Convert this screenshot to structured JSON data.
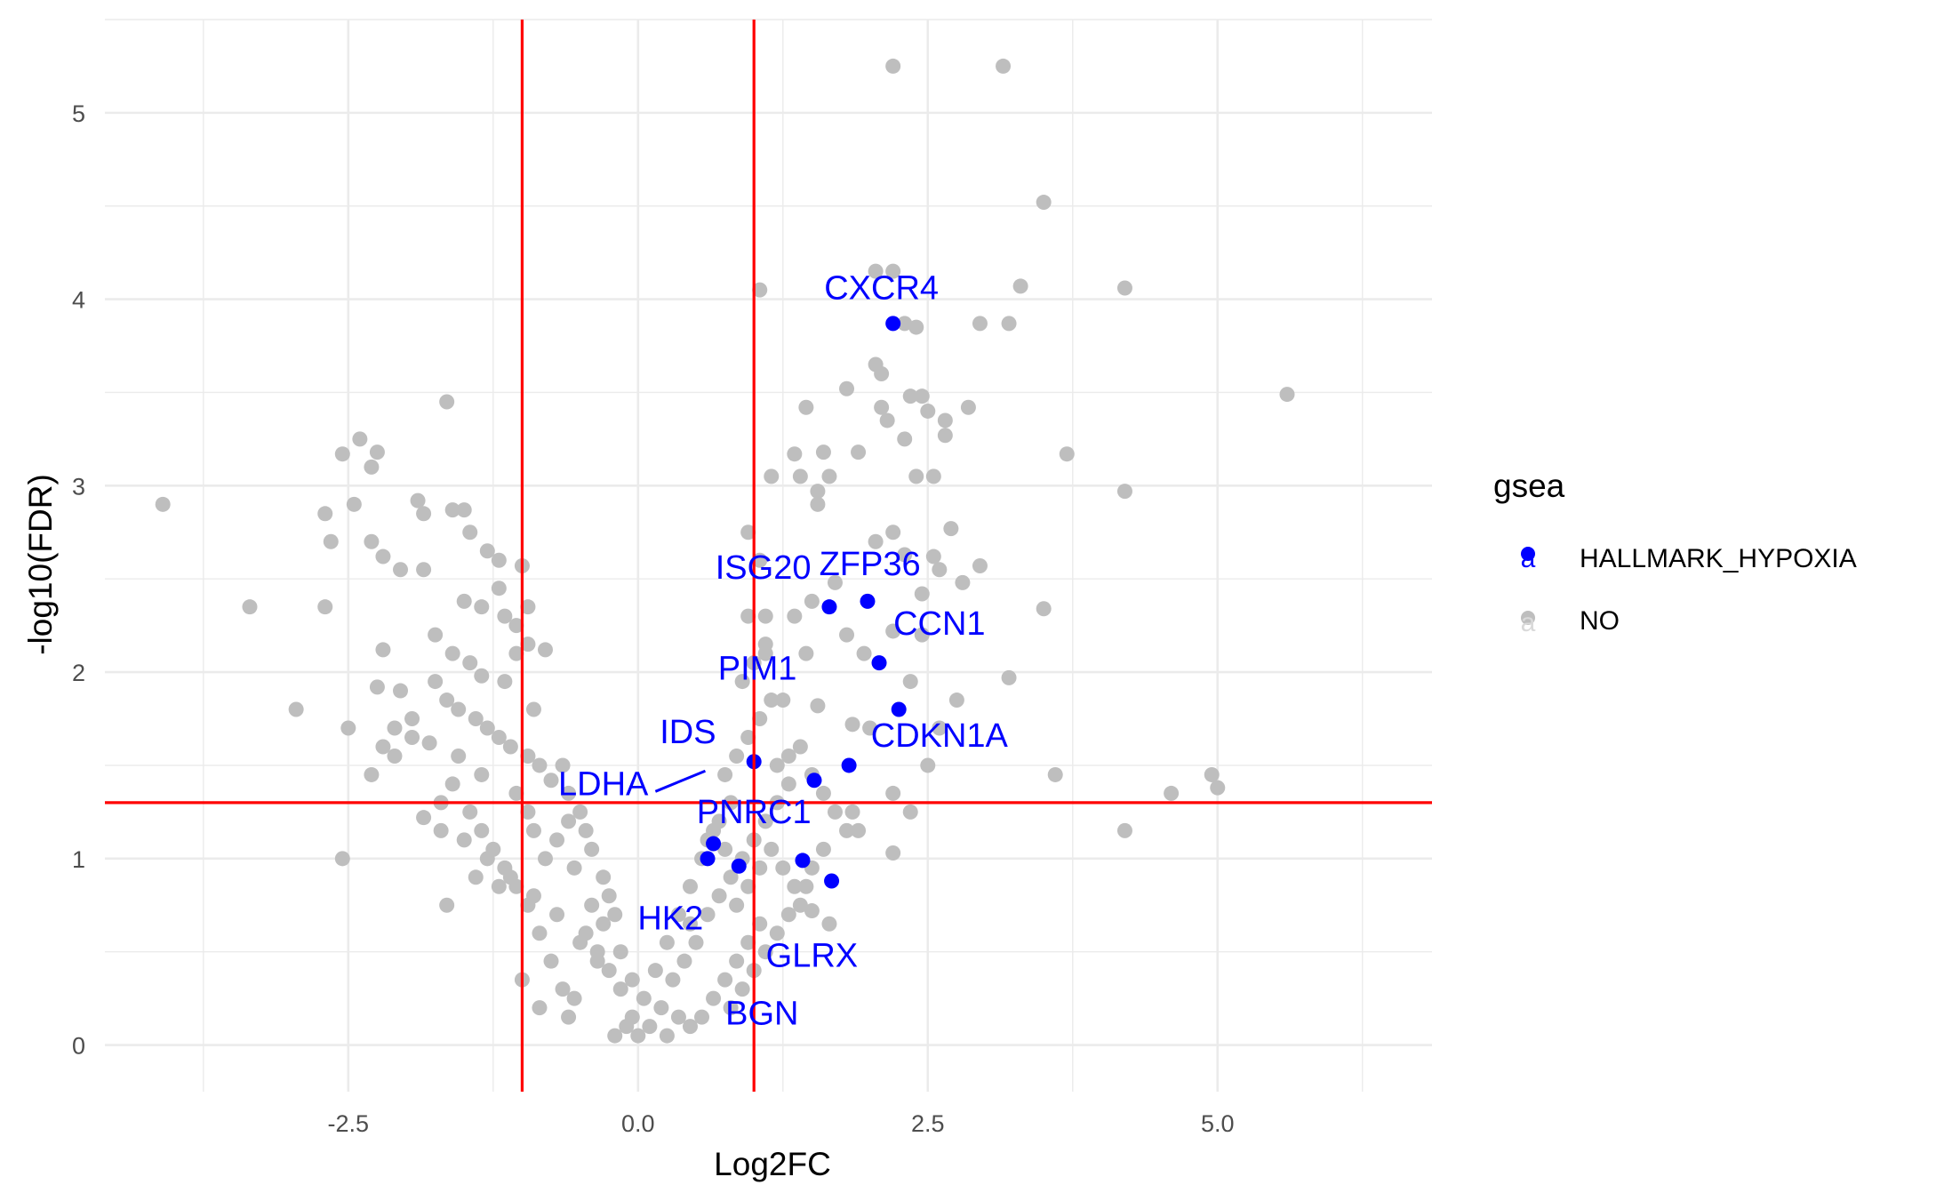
{
  "chart_data": {
    "type": "scatter",
    "title": "",
    "xlabel": "Log2FC",
    "ylabel": "-log10(FDR)",
    "xlim": [
      -4.6,
      6.85
    ],
    "ylim": [
      -0.25,
      5.5
    ],
    "xticks": [
      -2.5,
      0.0,
      2.5,
      5.0
    ],
    "xtick_labels": [
      "-2.5",
      "0.0",
      "2.5",
      "5.0"
    ],
    "yticks": [
      0,
      1,
      2,
      3,
      4,
      5
    ],
    "ytick_labels": [
      "0",
      "1",
      "2",
      "3",
      "4",
      "5"
    ],
    "grid": true,
    "thresholds": {
      "vertical_lines": [
        -1,
        1
      ],
      "horizontal_line": 1.3,
      "color": "#ff0000"
    },
    "legend": {
      "title": "gsea",
      "placement": "right",
      "entries": [
        {
          "label": "HALLMARK_HYPOXIA",
          "color": "#0000ff"
        },
        {
          "label": "NO",
          "color": "#bebebe"
        }
      ]
    },
    "series": [
      {
        "name": "NO",
        "color": "#bebebe",
        "points": [
          [
            2.2,
            5.25
          ],
          [
            3.15,
            5.25
          ],
          [
            3.5,
            4.52
          ],
          [
            2.05,
            4.15
          ],
          [
            2.2,
            4.15
          ],
          [
            3.3,
            4.07
          ],
          [
            4.2,
            4.06
          ],
          [
            1.05,
            4.05
          ],
          [
            2.3,
            3.87
          ],
          [
            2.4,
            3.85
          ],
          [
            2.95,
            3.87
          ],
          [
            3.2,
            3.87
          ],
          [
            2.05,
            3.65
          ],
          [
            2.1,
            3.6
          ],
          [
            1.8,
            3.52
          ],
          [
            2.35,
            3.48
          ],
          [
            2.45,
            3.48
          ],
          [
            5.6,
            3.49
          ],
          [
            1.45,
            3.42
          ],
          [
            2.1,
            3.42
          ],
          [
            2.5,
            3.4
          ],
          [
            2.85,
            3.42
          ],
          [
            2.15,
            3.35
          ],
          [
            2.65,
            3.35
          ],
          [
            2.65,
            3.27
          ],
          [
            2.3,
            3.25
          ],
          [
            1.35,
            3.17
          ],
          [
            1.6,
            3.18
          ],
          [
            1.9,
            3.18
          ],
          [
            3.7,
            3.17
          ],
          [
            1.65,
            3.05
          ],
          [
            1.15,
            3.05
          ],
          [
            1.4,
            3.05
          ],
          [
            2.4,
            3.05
          ],
          [
            2.55,
            3.05
          ],
          [
            1.55,
            2.97
          ],
          [
            1.55,
            2.9
          ],
          [
            4.2,
            2.97
          ],
          [
            0.95,
            2.75
          ],
          [
            2.2,
            2.75
          ],
          [
            2.7,
            2.77
          ],
          [
            2.05,
            2.7
          ],
          [
            1.05,
            2.6
          ],
          [
            2.3,
            2.63
          ],
          [
            2.55,
            2.62
          ],
          [
            2.6,
            2.55
          ],
          [
            2.95,
            2.57
          ],
          [
            1.7,
            2.48
          ],
          [
            2.8,
            2.48
          ],
          [
            2.45,
            2.42
          ],
          [
            1.5,
            2.38
          ],
          [
            1.1,
            2.3
          ],
          [
            1.35,
            2.3
          ],
          [
            3.5,
            2.34
          ],
          [
            0.95,
            2.3
          ],
          [
            1.8,
            2.2
          ],
          [
            2.2,
            2.22
          ],
          [
            2.45,
            2.2
          ],
          [
            1.1,
            2.1
          ],
          [
            1.45,
            2.1
          ],
          [
            1.95,
            2.1
          ],
          [
            3.2,
            1.97
          ],
          [
            2.35,
            1.95
          ],
          [
            2.75,
            1.85
          ],
          [
            1.25,
            1.85
          ],
          [
            1.55,
            1.82
          ],
          [
            2.6,
            1.7
          ],
          [
            2.0,
            1.7
          ],
          [
            1.85,
            1.72
          ],
          [
            2.5,
            1.5
          ],
          [
            3.6,
            1.45
          ],
          [
            4.95,
            1.45
          ],
          [
            5.0,
            1.38
          ],
          [
            4.6,
            1.35
          ],
          [
            2.2,
            1.35
          ],
          [
            2.35,
            1.25
          ],
          [
            1.85,
            1.25
          ],
          [
            1.9,
            1.15
          ],
          [
            4.2,
            1.15
          ],
          [
            2.2,
            1.03
          ],
          [
            1.5,
            0.72
          ],
          [
            1.65,
            0.65
          ],
          [
            -4.1,
            2.9
          ],
          [
            -3.35,
            2.35
          ],
          [
            -2.95,
            1.8
          ],
          [
            -2.7,
            2.85
          ],
          [
            -2.7,
            2.35
          ],
          [
            -2.65,
            2.7
          ],
          [
            -2.55,
            3.17
          ],
          [
            -2.4,
            3.25
          ],
          [
            -2.3,
            3.1
          ],
          [
            -2.25,
            3.18
          ],
          [
            -2.45,
            2.9
          ],
          [
            -2.3,
            2.7
          ],
          [
            -2.2,
            2.62
          ],
          [
            -2.05,
            2.55
          ],
          [
            -2.2,
            2.12
          ],
          [
            -2.25,
            1.92
          ],
          [
            -2.2,
            1.6
          ],
          [
            -2.1,
            1.55
          ],
          [
            -2.05,
            1.9
          ],
          [
            -1.95,
            1.75
          ],
          [
            -2.3,
            1.45
          ],
          [
            -2.5,
            1.7
          ],
          [
            -1.65,
            3.45
          ],
          [
            -1.9,
            2.92
          ],
          [
            -1.85,
            2.85
          ],
          [
            -1.6,
            2.87
          ],
          [
            -1.5,
            2.87
          ],
          [
            -1.45,
            2.75
          ],
          [
            -1.3,
            2.65
          ],
          [
            -1.2,
            2.6
          ],
          [
            -1.2,
            2.45
          ],
          [
            -1.0,
            2.57
          ],
          [
            -1.85,
            2.55
          ],
          [
            -1.5,
            2.38
          ],
          [
            -1.35,
            2.35
          ],
          [
            -1.15,
            2.3
          ],
          [
            -1.05,
            2.25
          ],
          [
            -0.95,
            2.35
          ],
          [
            -1.75,
            2.2
          ],
          [
            -1.6,
            2.1
          ],
          [
            -1.45,
            2.05
          ],
          [
            -1.35,
            1.98
          ],
          [
            -1.15,
            1.95
          ],
          [
            -1.05,
            2.1
          ],
          [
            -0.9,
            1.8
          ],
          [
            -0.95,
            2.15
          ],
          [
            -0.8,
            2.12
          ],
          [
            -1.75,
            1.95
          ],
          [
            -1.65,
            1.85
          ],
          [
            -1.55,
            1.8
          ],
          [
            -1.4,
            1.75
          ],
          [
            -1.3,
            1.7
          ],
          [
            -1.2,
            1.65
          ],
          [
            -1.1,
            1.6
          ],
          [
            -0.95,
            1.55
          ],
          [
            -0.85,
            1.5
          ],
          [
            -0.75,
            1.42
          ],
          [
            -0.65,
            1.5
          ],
          [
            -0.6,
            1.35
          ],
          [
            -0.5,
            1.25
          ],
          [
            -0.45,
            1.15
          ],
          [
            -0.4,
            1.05
          ],
          [
            -0.3,
            0.9
          ],
          [
            -0.25,
            0.8
          ],
          [
            -0.2,
            0.7
          ],
          [
            -2.55,
            1.0
          ],
          [
            -1.65,
            0.75
          ],
          [
            -1.4,
            0.9
          ],
          [
            -1.2,
            0.85
          ],
          [
            -1.7,
            1.15
          ],
          [
            -1.85,
            1.22
          ],
          [
            -0.95,
            1.25
          ],
          [
            -1.05,
            1.35
          ],
          [
            -1.35,
            1.45
          ],
          [
            -1.55,
            1.55
          ],
          [
            -1.8,
            1.62
          ],
          [
            -1.95,
            1.65
          ],
          [
            -2.1,
            1.7
          ],
          [
            -0.55,
            0.95
          ],
          [
            -0.45,
            0.6
          ],
          [
            -0.35,
            0.5
          ],
          [
            -0.25,
            0.4
          ],
          [
            -0.15,
            0.3
          ],
          [
            -0.05,
            0.15
          ],
          [
            0.0,
            0.05
          ],
          [
            0.1,
            0.1
          ],
          [
            0.2,
            0.2
          ],
          [
            0.3,
            0.35
          ],
          [
            0.4,
            0.45
          ],
          [
            0.5,
            0.55
          ],
          [
            0.6,
            0.7
          ],
          [
            0.7,
            0.8
          ],
          [
            0.8,
            0.9
          ],
          [
            0.9,
            1.0
          ],
          [
            1.0,
            1.1
          ],
          [
            1.1,
            1.2
          ],
          [
            1.2,
            1.3
          ],
          [
            1.3,
            1.4
          ],
          [
            1.15,
            1.05
          ],
          [
            1.25,
            0.95
          ],
          [
            1.35,
            0.85
          ],
          [
            1.4,
            0.75
          ],
          [
            1.05,
            0.65
          ],
          [
            0.95,
            0.55
          ],
          [
            0.85,
            0.45
          ],
          [
            0.75,
            0.35
          ],
          [
            0.65,
            0.25
          ],
          [
            0.55,
            0.15
          ],
          [
            0.45,
            0.1
          ],
          [
            -0.65,
            0.3
          ],
          [
            -0.75,
            0.45
          ],
          [
            -0.85,
            0.6
          ],
          [
            -0.95,
            0.75
          ],
          [
            -1.05,
            0.85
          ],
          [
            -1.15,
            0.95
          ],
          [
            -1.25,
            1.05
          ],
          [
            -1.35,
            1.15
          ],
          [
            -1.45,
            1.25
          ],
          [
            -0.55,
            0.25
          ],
          [
            -0.6,
            0.15
          ],
          [
            -0.85,
            0.2
          ],
          [
            -1.0,
            0.35
          ],
          [
            -0.2,
            0.05
          ],
          [
            -0.1,
            0.1
          ],
          [
            0.25,
            0.05
          ],
          [
            0.35,
            0.15
          ],
          [
            0.75,
            1.45
          ],
          [
            0.85,
            1.55
          ],
          [
            0.95,
            1.65
          ],
          [
            1.05,
            1.75
          ],
          [
            1.15,
            1.85
          ],
          [
            0.8,
            1.3
          ],
          [
            0.7,
            1.2
          ],
          [
            0.6,
            1.1
          ],
          [
            0.9,
            1.95
          ],
          [
            1.0,
            2.05
          ],
          [
            1.1,
            2.15
          ],
          [
            1.2,
            1.5
          ],
          [
            1.3,
            1.55
          ],
          [
            1.4,
            1.6
          ],
          [
            1.5,
            1.45
          ],
          [
            1.6,
            1.35
          ],
          [
            1.7,
            1.25
          ],
          [
            1.8,
            1.15
          ],
          [
            1.6,
            1.05
          ],
          [
            1.5,
            0.95
          ],
          [
            1.45,
            0.85
          ],
          [
            1.3,
            0.7
          ],
          [
            1.2,
            0.6
          ],
          [
            1.1,
            0.5
          ],
          [
            1.0,
            0.4
          ],
          [
            0.9,
            0.3
          ],
          [
            0.8,
            0.2
          ],
          [
            -1.6,
            1.4
          ],
          [
            -1.7,
            1.3
          ],
          [
            -1.5,
            1.1
          ],
          [
            -1.3,
            1.0
          ],
          [
            -1.1,
            0.9
          ],
          [
            -0.9,
            0.8
          ],
          [
            -0.7,
            0.7
          ],
          [
            -0.5,
            0.55
          ],
          [
            -0.35,
            0.45
          ],
          [
            -0.8,
            1.0
          ],
          [
            -0.7,
            1.1
          ],
          [
            -0.6,
            1.2
          ],
          [
            -0.9,
            1.15
          ],
          [
            -0.4,
            0.75
          ],
          [
            -0.3,
            0.65
          ],
          [
            -0.15,
            0.5
          ],
          [
            -0.05,
            0.35
          ],
          [
            0.05,
            0.25
          ],
          [
            0.15,
            0.4
          ],
          [
            0.25,
            0.55
          ],
          [
            0.35,
            0.7
          ],
          [
            0.45,
            0.85
          ],
          [
            0.55,
            1.0
          ],
          [
            0.65,
            1.15
          ],
          [
            0.75,
            1.05
          ],
          [
            0.85,
            0.75
          ],
          [
            0.95,
            0.85
          ],
          [
            1.05,
            0.95
          ],
          [
            0.45,
            0.65
          ]
        ]
      },
      {
        "name": "HALLMARK_HYPOXIA",
        "color": "#0000ff",
        "points": [
          [
            2.2,
            3.87
          ],
          [
            1.65,
            2.35
          ],
          [
            1.98,
            2.38
          ],
          [
            2.08,
            2.05
          ],
          [
            2.25,
            1.8
          ],
          [
            1.0,
            1.52
          ],
          [
            1.82,
            1.5
          ],
          [
            1.52,
            1.42
          ],
          [
            0.65,
            1.08
          ],
          [
            0.6,
            1.0
          ],
          [
            0.87,
            0.96
          ],
          [
            1.42,
            0.99
          ],
          [
            1.67,
            0.88
          ]
        ]
      }
    ],
    "annotations": [
      {
        "text": "CXCR4",
        "x": 2.1,
        "y": 4.0
      },
      {
        "text": "ISG20",
        "x": 1.08,
        "y": 2.5
      },
      {
        "text": "ZFP36",
        "x": 2.0,
        "y": 2.52
      },
      {
        "text": "CCN1",
        "x": 2.6,
        "y": 2.2
      },
      {
        "text": "PIM1",
        "x": 1.03,
        "y": 1.96
      },
      {
        "text": "IDS",
        "x": 0.43,
        "y": 1.62
      },
      {
        "text": "CDKN1A",
        "x": 2.6,
        "y": 1.6
      },
      {
        "text": "LDHA",
        "x": -0.3,
        "y": 1.34
      },
      {
        "text": "PNRC1",
        "x": 1.0,
        "y": 1.19
      },
      {
        "text": "HK2",
        "x": 0.28,
        "y": 0.62
      },
      {
        "text": "GLRX",
        "x": 1.5,
        "y": 0.42
      },
      {
        "text": "BGN",
        "x": 1.07,
        "y": 0.11
      }
    ]
  }
}
